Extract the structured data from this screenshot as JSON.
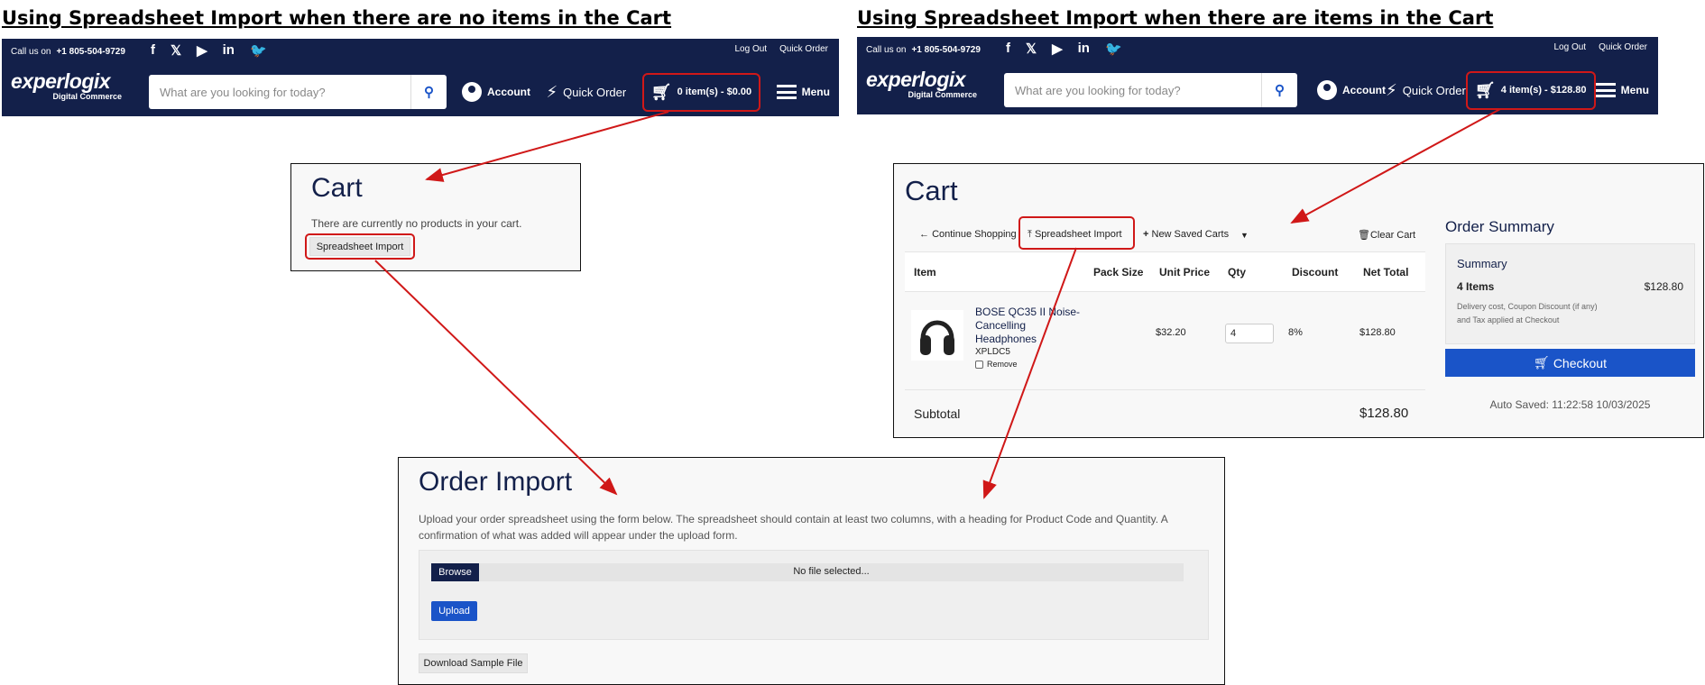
{
  "sections": {
    "left_title": "Using Spreadsheet Import when there are no items in the Cart",
    "right_title": "Using Spreadsheet Import when there are items in the Cart"
  },
  "header": {
    "call_label": "Call us on",
    "phone": "+1 805-504-9729",
    "social": [
      "f",
      "𝕏",
      "▶",
      "in",
      "🐦"
    ],
    "log_out": "Log Out",
    "quick_order_top": "Quick Order",
    "logo_main": "experlogix",
    "logo_sub": "Digital Commerce",
    "search_placeholder": "What are you looking for today?",
    "account": "Account",
    "quick_order": "Quick Order",
    "menu": "Menu",
    "cart_left": "0 item(s) - $0.00",
    "cart_right": "4 item(s) - $128.80"
  },
  "empty_cart": {
    "title": "Cart",
    "message": "There are currently no products in your cart.",
    "spreadsheet_import": "Spreadsheet Import"
  },
  "cart": {
    "title": "Cart",
    "toolbar": {
      "continue": "Continue Shopping",
      "import": "Spreadsheet Import",
      "new_saved": "New Saved Carts",
      "clear": "Clear Cart"
    },
    "columns": [
      "Item",
      "Pack Size",
      "Unit Price",
      "Qty",
      "Discount",
      "Net Total"
    ],
    "row": {
      "name_l1": "BOSE QC35 II Noise-",
      "name_l2": "Cancelling",
      "name_l3": "Headphones",
      "code": "XPLDC5",
      "remove": "Remove",
      "unit_price": "$32.20",
      "qty": "4",
      "discount": "8%",
      "net_total": "$128.80"
    },
    "subtotal_label": "Subtotal",
    "subtotal": "$128.80",
    "summary": {
      "heading": "Order Summary",
      "title": "Summary",
      "items": "4 Items",
      "total": "$128.80",
      "note_l1": "Delivery cost, Coupon Discount (if any)",
      "note_l2": "and Tax applied at Checkout",
      "checkout": "Checkout",
      "auto_saved": "Auto Saved: 11:22:58 10/03/2025"
    }
  },
  "order_import": {
    "title": "Order Import",
    "desc_l1": "Upload your order spreadsheet using the form below. The spreadsheet should contain at least two columns, with a heading for Product Code and Quantity. A",
    "desc_l2": "confirmation of what was added will appear under the upload form.",
    "browse": "Browse",
    "file_status": "No file selected...",
    "upload": "Upload",
    "download": "Download Sample File"
  },
  "colors": {
    "navy": "#13204a",
    "highlight": "#d01818",
    "primary": "#1a54c8"
  }
}
